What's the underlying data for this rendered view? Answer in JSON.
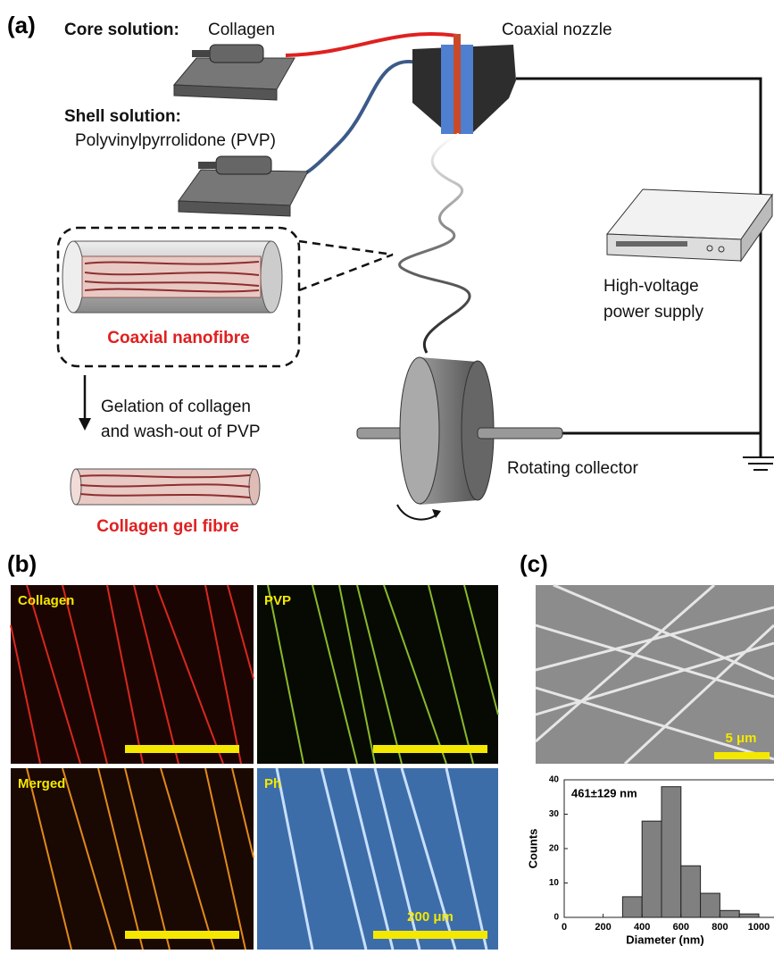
{
  "panel_a": {
    "label": "(a)",
    "core_label": "Core solution:",
    "core_value": "Collagen",
    "shell_label": "Shell solution:",
    "shell_value": "Polyvinylpyrrolidone (PVP)",
    "nozzle": "Coaxial nozzle",
    "power_supply": [
      "High-voltage",
      "power supply"
    ],
    "coaxial_nanofibre": "Coaxial nanofibre",
    "process": [
      "Gelation of collagen",
      "and wash-out of PVP"
    ],
    "gel_fibre": "Collagen gel fibre",
    "collector": "Rotating collector"
  },
  "panel_b": {
    "label": "(b)",
    "images": [
      "Collagen",
      "PVP",
      "Merged",
      "Ph"
    ],
    "scale_bar": "200 μm"
  },
  "panel_c": {
    "label": "(c)",
    "scale_bar": "5 μm"
  },
  "chart_data": {
    "type": "histogram",
    "annotation": "461±129 nm",
    "x_label": "Diameter (nm)",
    "y_label": "Counts",
    "bins": [
      300,
      400,
      500,
      600,
      700,
      800,
      900,
      1000
    ],
    "values": [
      6,
      28,
      38,
      15,
      7,
      2,
      1
    ],
    "color": "#808080",
    "xlim": [
      0,
      1100
    ],
    "ylim": [
      0,
      40
    ],
    "xticks": [
      0,
      200,
      400,
      600,
      800,
      1000
    ],
    "yticks": [
      0,
      10,
      20,
      30,
      40
    ]
  }
}
